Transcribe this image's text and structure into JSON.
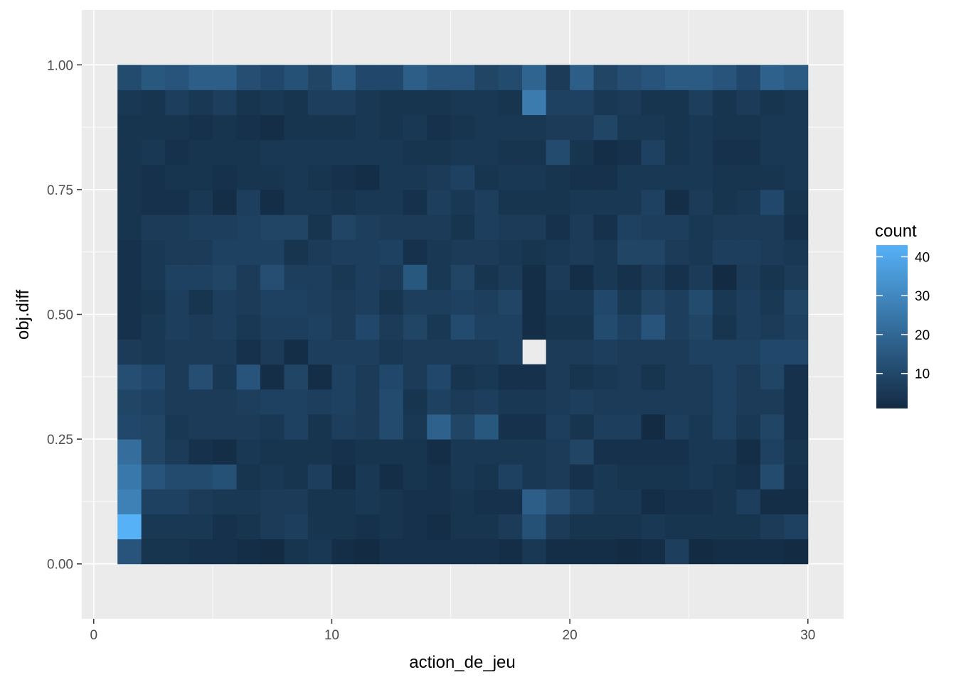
{
  "chart_data": {
    "type": "heatmap",
    "title": "",
    "xlabel": "action_de_jeu",
    "ylabel": "obj.diff",
    "xlim": [
      -0.5,
      31.5
    ],
    "ylim": [
      -0.11,
      1.11
    ],
    "x_ticks": [
      0,
      10,
      20,
      30
    ],
    "x_tick_labels": [
      "0",
      "10",
      "20",
      "30"
    ],
    "y_ticks": [
      0,
      0.25,
      0.5,
      0.75,
      1
    ],
    "y_tick_labels": [
      "0.00",
      "0.25",
      "0.50",
      "0.75",
      "1.00"
    ],
    "grid": true,
    "panel_background": "#ebebeb",
    "x_bins": {
      "start": 1,
      "width": 1,
      "count": 29
    },
    "y_bins": {
      "start": 0,
      "width": 0.05,
      "count": 20
    },
    "missing_cell": {
      "x_index": 17,
      "y_index": 8
    },
    "legend": {
      "title": "count",
      "position": "right",
      "min": 1,
      "max": 43,
      "low_color": "#132b43",
      "high_color": "#56b1f7",
      "breaks": [
        10,
        20,
        30,
        40
      ],
      "break_labels": [
        "10",
        "20",
        "30",
        "40"
      ]
    },
    "counts": [
      [
        14,
        4,
        4,
        3,
        3,
        2,
        1,
        4,
        5,
        2,
        1,
        3,
        3,
        3,
        3,
        3,
        2,
        5,
        2,
        2,
        2,
        1,
        2,
        7,
        1,
        2,
        2,
        2,
        1
      ],
      [
        43,
        5,
        5,
        5,
        3,
        4,
        6,
        7,
        4,
        4,
        3,
        4,
        3,
        2,
        4,
        4,
        6,
        13,
        6,
        4,
        4,
        4,
        5,
        4,
        4,
        4,
        4,
        6,
        8
      ],
      [
        28,
        8,
        8,
        6,
        5,
        5,
        6,
        6,
        4,
        4,
        5,
        4,
        3,
        3,
        4,
        3,
        3,
        17,
        12,
        8,
        5,
        5,
        2,
        3,
        3,
        4,
        7,
        2,
        2
      ],
      [
        25,
        14,
        11,
        11,
        13,
        4,
        5,
        4,
        7,
        2,
        5,
        2,
        4,
        3,
        5,
        4,
        8,
        5,
        6,
        3,
        5,
        4,
        4,
        4,
        5,
        4,
        3,
        11,
        3
      ],
      [
        22,
        9,
        6,
        3,
        2,
        5,
        4,
        4,
        4,
        3,
        4,
        4,
        4,
        2,
        5,
        5,
        5,
        5,
        6,
        9,
        3,
        3,
        3,
        3,
        5,
        5,
        2,
        8,
        4
      ],
      [
        10,
        9,
        5,
        6,
        6,
        6,
        5,
        8,
        4,
        7,
        6,
        11,
        5,
        18,
        9,
        15,
        3,
        3,
        7,
        4,
        7,
        7,
        1,
        7,
        5,
        8,
        5,
        9,
        3
      ],
      [
        9,
        8,
        6,
        6,
        6,
        7,
        8,
        8,
        7,
        8,
        6,
        11,
        4,
        8,
        6,
        7,
        5,
        5,
        6,
        7,
        6,
        6,
        6,
        6,
        6,
        8,
        6,
        6,
        3
      ],
      [
        12,
        10,
        6,
        12,
        5,
        14,
        2,
        9,
        2,
        8,
        6,
        10,
        6,
        10,
        4,
        5,
        3,
        3,
        6,
        4,
        5,
        6,
        4,
        6,
        6,
        8,
        6,
        9,
        3
      ],
      [
        6,
        5,
        6,
        6,
        6,
        3,
        6,
        2,
        7,
        7,
        7,
        5,
        6,
        6,
        6,
        6,
        8,
        -1,
        6,
        6,
        7,
        6,
        6,
        6,
        8,
        8,
        8,
        10,
        10
      ],
      [
        3,
        5,
        7,
        6,
        7,
        5,
        7,
        7,
        8,
        6,
        10,
        6,
        9,
        5,
        11,
        8,
        8,
        2,
        4,
        4,
        11,
        8,
        14,
        7,
        9,
        4,
        7,
        6,
        8
      ],
      [
        3,
        4,
        7,
        4,
        7,
        6,
        8,
        8,
        7,
        6,
        7,
        4,
        7,
        7,
        8,
        7,
        9,
        2,
        5,
        5,
        10,
        5,
        9,
        7,
        11,
        5,
        7,
        5,
        9
      ],
      [
        3,
        5,
        8,
        8,
        9,
        6,
        12,
        7,
        7,
        5,
        7,
        6,
        15,
        5,
        9,
        4,
        6,
        2,
        6,
        2,
        5,
        3,
        6,
        3,
        6,
        1,
        6,
        4,
        6
      ],
      [
        3,
        5,
        6,
        6,
        8,
        8,
        8,
        4,
        6,
        7,
        7,
        8,
        3,
        5,
        6,
        6,
        5,
        4,
        5,
        6,
        5,
        9,
        9,
        6,
        5,
        7,
        7,
        6,
        5
      ],
      [
        4,
        6,
        6,
        7,
        7,
        8,
        9,
        9,
        4,
        9,
        7,
        6,
        6,
        6,
        4,
        7,
        6,
        6,
        3,
        6,
        3,
        8,
        7,
        7,
        5,
        6,
        6,
        6,
        3
      ],
      [
        4,
        3,
        3,
        5,
        2,
        7,
        2,
        5,
        5,
        4,
        5,
        5,
        3,
        7,
        5,
        7,
        4,
        4,
        4,
        5,
        5,
        5,
        8,
        2,
        6,
        4,
        5,
        10,
        4
      ],
      [
        4,
        3,
        4,
        4,
        3,
        4,
        4,
        5,
        4,
        3,
        2,
        5,
        5,
        6,
        8,
        4,
        5,
        5,
        4,
        3,
        3,
        5,
        5,
        5,
        5,
        4,
        4,
        4,
        5
      ],
      [
        4,
        5,
        3,
        4,
        4,
        4,
        5,
        5,
        5,
        5,
        5,
        5,
        4,
        4,
        5,
        5,
        4,
        4,
        11,
        4,
        2,
        3,
        8,
        4,
        5,
        3,
        3,
        5,
        5
      ],
      [
        4,
        4,
        4,
        3,
        4,
        3,
        2,
        4,
        4,
        4,
        5,
        4,
        5,
        3,
        4,
        5,
        5,
        5,
        6,
        6,
        9,
        5,
        5,
        4,
        5,
        4,
        4,
        5,
        5
      ],
      [
        5,
        4,
        7,
        5,
        7,
        4,
        5,
        4,
        7,
        7,
        5,
        4,
        4,
        4,
        5,
        5,
        4,
        26,
        8,
        8,
        5,
        6,
        4,
        4,
        7,
        4,
        6,
        4,
        5
      ],
      [
        11,
        15,
        14,
        17,
        17,
        12,
        10,
        13,
        9,
        16,
        10,
        10,
        17,
        14,
        14,
        9,
        11,
        19,
        6,
        17,
        9,
        12,
        14,
        16,
        16,
        14,
        10,
        18,
        16
      ]
    ]
  }
}
